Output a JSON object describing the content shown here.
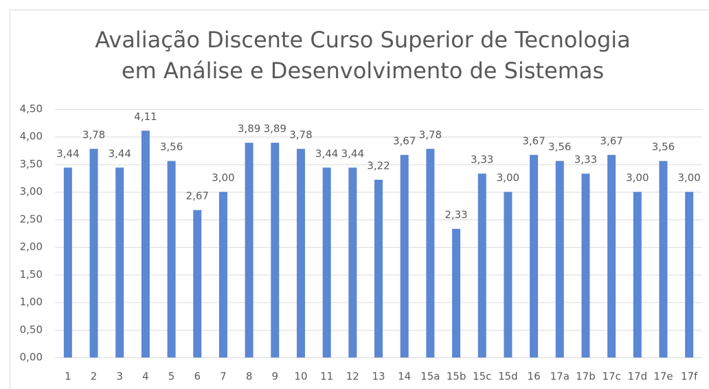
{
  "chart_data": {
    "type": "bar",
    "title": [
      "Avaliação Discente Curso Superior de Tecnologia",
      "em Análise e Desenvolvimento de Sistemas"
    ],
    "categories": [
      "1",
      "2",
      "3",
      "4",
      "5",
      "6",
      "7",
      "8",
      "9",
      "10",
      "11",
      "12",
      "13",
      "14",
      "15a",
      "15b",
      "15c",
      "15d",
      "16",
      "17a",
      "17b",
      "17c",
      "17d",
      "17e",
      "17f"
    ],
    "values": [
      3.44,
      3.78,
      3.44,
      4.11,
      3.56,
      2.67,
      3.0,
      3.89,
      3.89,
      3.78,
      3.44,
      3.44,
      3.22,
      3.67,
      3.78,
      2.33,
      3.33,
      3.0,
      3.67,
      3.56,
      3.33,
      3.67,
      3.0,
      3.56,
      3.0
    ],
    "value_labels": [
      "3,44",
      "3,78",
      "3,44",
      "4,11",
      "3,56",
      "2,67",
      "3,00",
      "3,89",
      "3,89",
      "3,78",
      "3,44",
      "3,44",
      "3,22",
      "3,67",
      "3,78",
      "2,33",
      "3,33",
      "3,00",
      "3,67",
      "3,56",
      "3,33",
      "3,67",
      "3,00",
      "3,56",
      "3,00"
    ],
    "color": "#5b87d3",
    "ylim": [
      0,
      4.5
    ],
    "yticks": [
      {
        "value": 0,
        "label": "0,00"
      },
      {
        "value": 0.5,
        "label": "0,50"
      },
      {
        "value": 1,
        "label": "1,00"
      },
      {
        "value": 1.5,
        "label": "1,50"
      },
      {
        "value": 2,
        "label": "2,00"
      },
      {
        "value": 2.5,
        "label": "2,50"
      },
      {
        "value": 3,
        "label": "3,00"
      },
      {
        "value": 3.5,
        "label": "3,50"
      },
      {
        "value": 4,
        "label": "4,00"
      },
      {
        "value": 4.5,
        "label": "4,50"
      }
    ],
    "grid": true
  }
}
